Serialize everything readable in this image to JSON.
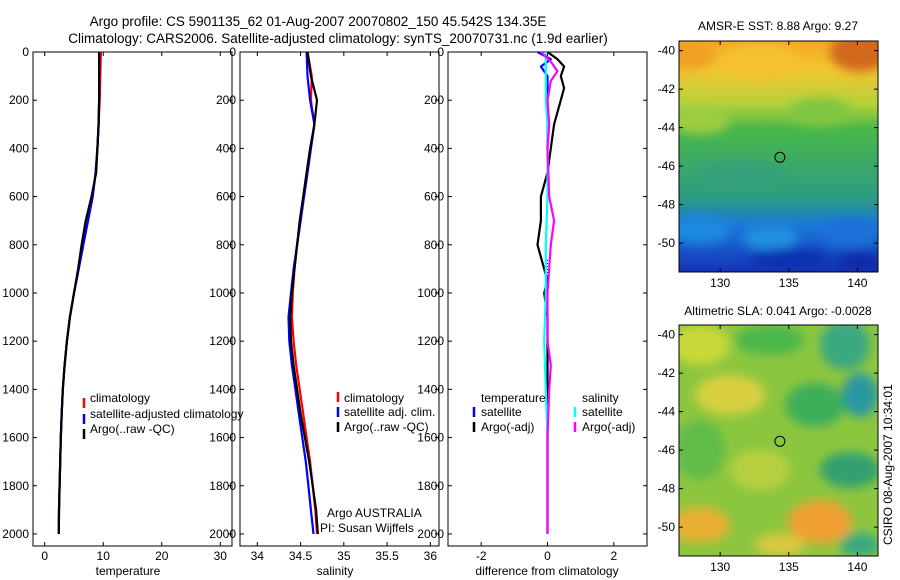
{
  "figure": {
    "title_line1": "Argo profile: CS 5901135_62 01-Aug-2007 20070802_150 45.542S 134.35E",
    "title_line2": "Climatology: CARS2006. Satellite-adjusted climatology: synTS_20070731.nc (1.9d earlier)",
    "side_stamp": "CSIRO 08-Aug-2007 10:34:01",
    "argo_label": "Argo AUSTRALIA",
    "pi_label": "PI: Susan Wijffels"
  },
  "colors": {
    "climatology": "#ff0000",
    "satellite": "#0000ff",
    "argo": "#000000",
    "sal_satellite": "#00ffff",
    "sal_argo": "#ff00ff"
  },
  "chart_data": [
    {
      "id": "temperature",
      "type": "line",
      "xlabel": "temperature",
      "xlim": [
        -2,
        32
      ],
      "xticks": [
        0,
        10,
        20,
        30
      ],
      "ylim": [
        0,
        2050
      ],
      "yticks": [
        0,
        200,
        400,
        600,
        800,
        1000,
        1200,
        1400,
        1600,
        1800,
        2000
      ],
      "legend": [
        "climatology",
        "satellite-adjusted climatology",
        "Argo(..raw -QC)"
      ],
      "series": [
        {
          "name": "climatology",
          "color": "#ff0000",
          "depth": [
            0,
            100,
            200,
            300,
            400,
            500,
            600,
            700,
            800,
            900,
            1000,
            1100,
            1200,
            1300,
            1400,
            1500,
            1600,
            1700,
            1800,
            1900,
            2000
          ],
          "values": [
            9.6,
            9.5,
            9.4,
            9.2,
            9.0,
            8.7,
            8.2,
            7.4,
            6.6,
            5.8,
            5.0,
            4.3,
            3.8,
            3.4,
            3.1,
            2.9,
            2.75,
            2.65,
            2.55,
            2.45,
            2.4
          ]
        },
        {
          "name": "satellite-adjusted climatology",
          "color": "#0000ff",
          "depth": [
            0,
            100,
            200,
            300,
            400,
            500,
            600,
            700,
            800,
            900,
            1000,
            1100,
            1200,
            1300,
            1400,
            1500,
            1600,
            1700,
            1800,
            1900,
            2000
          ],
          "values": [
            9.3,
            9.3,
            9.3,
            9.2,
            9.0,
            8.7,
            8.2,
            7.4,
            6.6,
            5.8,
            5.0,
            4.3,
            3.8,
            3.4,
            3.1,
            2.9,
            2.75,
            2.65,
            2.55,
            2.45,
            2.4
          ]
        },
        {
          "name": "Argo(..raw -QC)",
          "color": "#000000",
          "depth": [
            0,
            100,
            200,
            300,
            400,
            500,
            600,
            700,
            800,
            900,
            1000,
            1100,
            1200,
            1300,
            1400,
            1500,
            1600,
            1700,
            1800,
            1900,
            2000
          ],
          "values": [
            9.3,
            9.3,
            9.3,
            9.2,
            9.0,
            8.8,
            8.0,
            7.0,
            6.3,
            5.7,
            5.0,
            4.3,
            3.8,
            3.4,
            3.1,
            2.9,
            2.75,
            2.65,
            2.55,
            2.45,
            2.4
          ]
        }
      ]
    },
    {
      "id": "salinity",
      "type": "line",
      "xlabel": "salinity",
      "xlim": [
        33.8,
        36.1
      ],
      "xticks": [
        34,
        34.5,
        35,
        35.5,
        36
      ],
      "xticklabels": [
        "34",
        "34.5",
        "35",
        "35.5",
        "36"
      ],
      "ylim": [
        0,
        2050
      ],
      "legend": [
        "climatology",
        "satellite adj. clim.",
        "Argo(..raw -QC)"
      ],
      "series": [
        {
          "name": "climatology",
          "color": "#ff0000",
          "depth": [
            0,
            100,
            200,
            300,
            400,
            500,
            600,
            700,
            800,
            900,
            1000,
            1100,
            1200,
            1300,
            1400,
            1500,
            1600,
            1700,
            1800,
            1900,
            2000
          ],
          "values": [
            34.58,
            34.63,
            34.62,
            34.66,
            34.62,
            34.58,
            34.54,
            34.5,
            34.46,
            34.43,
            34.41,
            34.4,
            34.42,
            34.45,
            34.49,
            34.53,
            34.57,
            34.61,
            34.64,
            34.67,
            34.69
          ]
        },
        {
          "name": "satellite adj. clim.",
          "color": "#0000ff",
          "depth": [
            0,
            100,
            200,
            300,
            400,
            500,
            600,
            700,
            800,
            900,
            1000,
            1100,
            1200,
            1300,
            1400,
            1500,
            1600,
            1700,
            1800,
            1900,
            2000
          ],
          "values": [
            34.57,
            34.58,
            34.61,
            34.66,
            34.62,
            34.58,
            34.54,
            34.5,
            34.46,
            34.42,
            34.39,
            34.36,
            34.37,
            34.4,
            34.44,
            34.48,
            34.52,
            34.56,
            34.59,
            34.62,
            34.65
          ]
        },
        {
          "name": "Argo(..raw -QC)",
          "color": "#000000",
          "depth": [
            0,
            100,
            200,
            300,
            400,
            500,
            600,
            700,
            800,
            900,
            1000,
            1100,
            1200,
            1300,
            1400,
            1500,
            1600,
            1700,
            1800,
            1900,
            2000
          ],
          "values": [
            34.58,
            34.62,
            34.69,
            34.66,
            34.61,
            34.57,
            34.53,
            34.49,
            34.46,
            34.43,
            34.4,
            34.38,
            34.39,
            34.42,
            34.46,
            34.5,
            34.55,
            34.6,
            34.64,
            34.68,
            34.7
          ]
        }
      ]
    },
    {
      "id": "difference",
      "type": "line",
      "xlabel": "difference from climatology",
      "xlim": [
        -3,
        3
      ],
      "xticks": [
        -2,
        0,
        2
      ],
      "ylim": [
        0,
        2050
      ],
      "legend_left_title": "temperature",
      "legend_right_title": "salinity",
      "legend": [
        "satellite",
        "Argo(-adj)",
        "satellite",
        "Argo(-adj)"
      ],
      "series": [
        {
          "name": "temperature satellite",
          "color": "#0000ff",
          "depth": [
            0,
            30,
            60,
            100,
            150,
            200,
            300,
            400
          ],
          "values": [
            -0.3,
            0.1,
            -0.2,
            0.0,
            0.0,
            0.0,
            0.0,
            0.0
          ]
        },
        {
          "name": "temperature Argo(-adj)",
          "color": "#000000",
          "depth": [
            0,
            30,
            60,
            100,
            150,
            200,
            300,
            400,
            500,
            600,
            700,
            800,
            900,
            950,
            1000,
            1100,
            1200,
            1400,
            1600,
            1800,
            2000
          ],
          "values": [
            0.0,
            0.3,
            0.5,
            0.4,
            0.5,
            0.4,
            0.2,
            0.1,
            0.0,
            -0.2,
            -0.2,
            -0.3,
            -0.1,
            0.0,
            -0.1,
            0.0,
            0.0,
            0.0,
            0.0,
            0.0,
            0.0
          ]
        },
        {
          "name": "salinity satellite",
          "color": "#00ffff",
          "depth": [
            0,
            100,
            200,
            300,
            400,
            600,
            800,
            1000,
            1200,
            1400,
            1600,
            1800,
            2000
          ],
          "values": [
            -0.05,
            -0.05,
            -0.05,
            0.0,
            0.0,
            0.0,
            -0.05,
            -0.05,
            -0.1,
            -0.05,
            0.0,
            0.0,
            0.0
          ]
        },
        {
          "name": "salinity Argo(-adj)",
          "color": "#ff00ff",
          "depth": [
            0,
            40,
            80,
            120,
            200,
            300,
            400,
            600,
            700,
            800,
            1000,
            1200,
            1300,
            1400,
            1600,
            1800,
            2000
          ],
          "values": [
            -0.2,
            0.1,
            0.3,
            0.1,
            0.0,
            0.05,
            0.0,
            0.05,
            0.2,
            0.1,
            0.0,
            0.0,
            0.1,
            0.05,
            0.0,
            0.0,
            0.0
          ]
        }
      ]
    },
    {
      "id": "sst_map",
      "type": "heatmap",
      "title": "AMSR-E SST: 8.88 Argo: 9.27",
      "xlim": [
        127,
        141.5
      ],
      "ylim": [
        -51.5,
        -39.5
      ],
      "xticks": [
        130,
        135,
        140
      ],
      "yticks": [
        -40,
        -42,
        -44,
        -46,
        -48,
        -50
      ],
      "marker": [
        134.35,
        -45.542
      ]
    },
    {
      "id": "sla_map",
      "type": "heatmap",
      "title": "Altimetric SLA: 0.041 Argo: -0.0028",
      "xlim": [
        127,
        141.5
      ],
      "ylim": [
        -51.5,
        -39.5
      ],
      "xticks": [
        130,
        135,
        140
      ],
      "yticks": [
        -40,
        -42,
        -44,
        -46,
        -48,
        -50
      ],
      "marker": [
        134.35,
        -45.542
      ]
    }
  ]
}
